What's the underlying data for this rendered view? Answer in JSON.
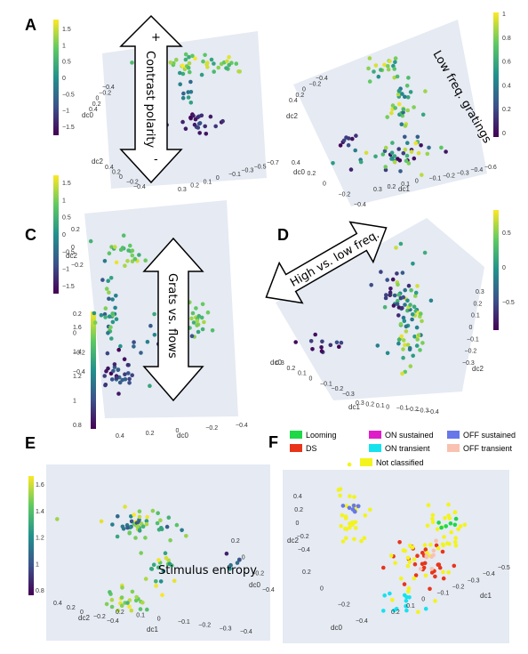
{
  "panel_labels": [
    "A",
    "B",
    "C",
    "D",
    "E",
    "F"
  ],
  "annotations": {
    "a_arrow": "Contrast polarity",
    "a_plus": "+",
    "a_minus": "-",
    "b_text": "Low freq. gratings",
    "c_arrow": "Grats vs. flows",
    "d_arrow": "High vs. low freq.",
    "e_text": "Stimulus entropy"
  },
  "colors": {
    "viridis": [
      "#440154",
      "#3b528b",
      "#21918c",
      "#5ec962",
      "#fde725"
    ],
    "pane": "#e5eaf3",
    "grid": "#ffffff"
  },
  "chart_data": [
    {
      "panel": "A",
      "type": "scatter",
      "axes": [
        "dc0",
        "dc2"
      ],
      "colorbar": {
        "range": [
          -2,
          2
        ],
        "ticks": [
          "1.5",
          "1",
          "0.5",
          "0",
          "−0.5",
          "−1",
          "−1.5"
        ]
      },
      "axis_ticks": [
        {
          "axis": "dc0",
          "labels": [
            "0.4",
            "0.2",
            "0",
            "−0.2",
            "−0.4"
          ]
        },
        {
          "axis": "dc2",
          "labels": [
            "0.4",
            "0.2",
            "0",
            "−0.2",
            "−0.4"
          ]
        },
        {
          "axis": "dc1",
          "labels": [
            "0.3",
            "0.2",
            "0.1",
            "0",
            "−0.1",
            "−0.3",
            "−0.5",
            "−0.7"
          ]
        }
      ],
      "clusters": [
        {
          "cx": 0.55,
          "cy": 0.2,
          "sx": 0.2,
          "sy": 0.03,
          "n": 45,
          "vmin": 0.3,
          "vmax": 2.0
        },
        {
          "cx": 0.58,
          "cy": 0.58,
          "sx": 0.06,
          "sy": 0.05,
          "n": 22,
          "vmin": -2.0,
          "vmax": -1.0
        },
        {
          "cx": 0.3,
          "cy": 0.55,
          "sx": 0.05,
          "sy": 0.04,
          "n": 12,
          "vmin": -1.5,
          "vmax": -0.5
        },
        {
          "cx": 0.5,
          "cy": 0.4,
          "sx": 0.05,
          "sy": 0.06,
          "n": 10,
          "vmin": -0.8,
          "vmax": 0.3
        }
      ]
    },
    {
      "panel": "B",
      "type": "scatter",
      "axes": [
        "dc0",
        "dc1",
        "dc2"
      ],
      "colorbar": {
        "range": [
          0,
          1
        ],
        "ticks": [
          "1",
          "0.8",
          "0.6",
          "0.4",
          "0.2",
          "0"
        ]
      },
      "axis_ticks": [
        {
          "axis": "dc0",
          "labels": [
            "0.4",
            "0.2",
            "0",
            "−0.2",
            "−0.4"
          ]
        },
        {
          "axis": "dc1",
          "labels": [
            "0.3",
            "0.2",
            "0.1",
            "0",
            "−0.1",
            "−0.2",
            "−0.3",
            "−0.4",
            "−0.6"
          ]
        },
        {
          "axis": "dc2",
          "labels": [
            "0.4",
            "0.2",
            "0",
            "−0.2",
            "−0.4"
          ]
        }
      ],
      "clusters": [
        {
          "cx": 0.45,
          "cy": 0.15,
          "sx": 0.06,
          "sy": 0.04,
          "n": 20,
          "vmin": 0.5,
          "vmax": 1.0
        },
        {
          "cx": 0.55,
          "cy": 0.45,
          "sx": 0.05,
          "sy": 0.12,
          "n": 30,
          "vmin": 0.3,
          "vmax": 1.0
        },
        {
          "cx": 0.55,
          "cy": 0.75,
          "sx": 0.12,
          "sy": 0.05,
          "n": 45,
          "vmin": 0.0,
          "vmax": 1.0
        },
        {
          "cx": 0.22,
          "cy": 0.66,
          "sx": 0.03,
          "sy": 0.03,
          "n": 8,
          "vmin": 0.0,
          "vmax": 0.3
        }
      ]
    },
    {
      "panel": "C",
      "type": "scatter",
      "axes": [
        "dc0",
        "dc2"
      ],
      "colorbar": {
        "range": [
          -2,
          2
        ],
        "ticks": [
          "1.5",
          "1",
          "0.5",
          "0",
          "−0.5",
          "−1",
          "−1.5"
        ]
      },
      "colorbar2": {
        "range": [
          0.8,
          1.8
        ],
        "ticks": [
          "1.6",
          "1.4",
          "1.2",
          "1",
          "0.8"
        ]
      },
      "axis_ticks": [
        {
          "axis": "dc0",
          "labels": [
            "0.4",
            "0.2",
            "0",
            "−0.2",
            "−0.4"
          ]
        },
        {
          "axis": "dc2",
          "labels": [
            "0.2",
            "0",
            "−0.2"
          ]
        },
        {
          "axis": "dc1",
          "labels": [
            "0.2",
            "0",
            "−0.2",
            "−0.4"
          ]
        }
      ],
      "clusters": [
        {
          "cx": 0.28,
          "cy": 0.2,
          "sx": 0.07,
          "sy": 0.04,
          "n": 22,
          "vmin": 0.5,
          "vmax": 2.0
        },
        {
          "cx": 0.15,
          "cy": 0.5,
          "sx": 0.04,
          "sy": 0.1,
          "n": 30,
          "vmin": -1.0,
          "vmax": 1.5
        },
        {
          "cx": 0.2,
          "cy": 0.78,
          "sx": 0.05,
          "sy": 0.07,
          "n": 30,
          "vmin": -2.0,
          "vmax": -0.5
        },
        {
          "cx": 0.75,
          "cy": 0.52,
          "sx": 0.06,
          "sy": 0.05,
          "n": 20,
          "vmin": 0.0,
          "vmax": 1.8
        },
        {
          "cx": 0.45,
          "cy": 0.65,
          "sx": 0.08,
          "sy": 0.1,
          "n": 15,
          "vmin": -1.5,
          "vmax": 0.5
        }
      ]
    },
    {
      "panel": "D",
      "type": "scatter",
      "axes": [
        "dc0",
        "dc1",
        "dc2"
      ],
      "colorbar": {
        "range": [
          -0.8,
          0.8
        ],
        "ticks": [
          "0.5",
          "0",
          "−0.5"
        ]
      },
      "axis_ticks": [
        {
          "axis": "dc0",
          "labels": [
            "0.3",
            "0.2",
            "0.1",
            "0",
            "−0.1",
            "−0.2",
            "−0.3"
          ]
        },
        {
          "axis": "dc1",
          "labels": [
            "0.3",
            "0.2",
            "0.1",
            "0",
            "−0.1",
            "−0.2",
            "−0.3",
            "−0.4"
          ]
        },
        {
          "axis": "dc2",
          "labels": [
            "0.3",
            "0.2",
            "0.1",
            "0",
            "−0.1",
            "−0.2",
            "−0.3"
          ]
        }
      ],
      "clusters": [
        {
          "cx": 0.62,
          "cy": 0.55,
          "sx": 0.05,
          "sy": 0.15,
          "n": 70,
          "vmin": -0.2,
          "vmax": 0.8
        },
        {
          "cx": 0.55,
          "cy": 0.38,
          "sx": 0.05,
          "sy": 0.06,
          "n": 20,
          "vmin": -0.8,
          "vmax": -0.3
        },
        {
          "cx": 0.2,
          "cy": 0.7,
          "sx": 0.06,
          "sy": 0.03,
          "n": 12,
          "vmin": -0.8,
          "vmax": -0.4
        }
      ]
    },
    {
      "panel": "E",
      "type": "scatter",
      "axes": [
        "dc0",
        "dc1",
        "dc2"
      ],
      "colorbar": {
        "range": [
          0.75,
          1.75
        ],
        "ticks": [
          "1.6",
          "1.4",
          "1.2",
          "1",
          "0.8"
        ]
      },
      "axis_ticks": [
        {
          "axis": "dc0",
          "labels": [
            "0.2",
            "0",
            "−0.2",
            "−0.4"
          ]
        },
        {
          "axis": "dc1",
          "labels": [
            "0.2",
            "0.1",
            "0",
            "−0.1",
            "−0.2",
            "−0.3",
            "−0.4"
          ]
        },
        {
          "axis": "dc2",
          "labels": [
            "0.4",
            "0.2",
            "0",
            "−0.2",
            "−0.4"
          ]
        }
      ],
      "clusters": [
        {
          "cx": 0.4,
          "cy": 0.35,
          "sx": 0.09,
          "sy": 0.05,
          "n": 50,
          "vmin": 1.0,
          "vmax": 1.75
        },
        {
          "cx": 0.5,
          "cy": 0.6,
          "sx": 0.05,
          "sy": 0.08,
          "n": 20,
          "vmin": 1.2,
          "vmax": 1.75
        },
        {
          "cx": 0.35,
          "cy": 0.78,
          "sx": 0.06,
          "sy": 0.04,
          "n": 25,
          "vmin": 1.4,
          "vmax": 1.75
        },
        {
          "cx": 0.85,
          "cy": 0.55,
          "sx": 0.02,
          "sy": 0.04,
          "n": 6,
          "vmin": 0.8,
          "vmax": 1.3
        }
      ]
    },
    {
      "panel": "F",
      "type": "scatter",
      "axes": [
        "dc0",
        "dc1",
        "dc2"
      ],
      "legend": [
        {
          "label": "Looming",
          "color": "#1ed848"
        },
        {
          "label": "ON sustained",
          "color": "#e01cc9"
        },
        {
          "label": "OFF sustained",
          "color": "#6777ea"
        },
        {
          "label": "DS",
          "color": "#e8351a"
        },
        {
          "label": "ON transient",
          "color": "#16e2ee"
        },
        {
          "label": "OFF transient",
          "color": "#f9c1b0"
        },
        {
          "label": "Not classified",
          "color": "#f3f41c"
        }
      ],
      "axis_ticks": [
        {
          "axis": "dc0",
          "labels": [
            "0.2",
            "0",
            "−0.2",
            "−0.4"
          ]
        },
        {
          "axis": "dc1",
          "labels": [
            "0.2",
            "0.1",
            "0",
            "−0.1",
            "−0.2",
            "−0.3",
            "−0.4",
            "−0.5"
          ]
        },
        {
          "axis": "dc2",
          "labels": [
            "0.4",
            "0.2",
            "0",
            "−0.2",
            "−0.4"
          ]
        }
      ],
      "clusters": [
        {
          "cx": 0.3,
          "cy": 0.3,
          "sx": 0.04,
          "sy": 0.12,
          "n": 30,
          "cls": 6
        },
        {
          "cx": 0.32,
          "cy": 0.2,
          "sx": 0.03,
          "sy": 0.02,
          "n": 8,
          "cls": 2
        },
        {
          "cx": 0.62,
          "cy": 0.55,
          "sx": 0.06,
          "sy": 0.08,
          "n": 30,
          "cls": 3
        },
        {
          "cx": 0.55,
          "cy": 0.78,
          "sx": 0.04,
          "sy": 0.04,
          "n": 12,
          "cls": 4
        },
        {
          "cx": 0.72,
          "cy": 0.35,
          "sx": 0.05,
          "sy": 0.08,
          "n": 25,
          "cls": 6
        },
        {
          "cx": 0.55,
          "cy": 0.55,
          "sx": 0.08,
          "sy": 0.12,
          "n": 25,
          "cls": 6
        },
        {
          "cx": 0.72,
          "cy": 0.3,
          "sx": 0.03,
          "sy": 0.03,
          "n": 6,
          "cls": 0
        },
        {
          "cx": 0.65,
          "cy": 0.5,
          "sx": 0.03,
          "sy": 0.05,
          "n": 8,
          "cls": 5
        }
      ]
    }
  ]
}
